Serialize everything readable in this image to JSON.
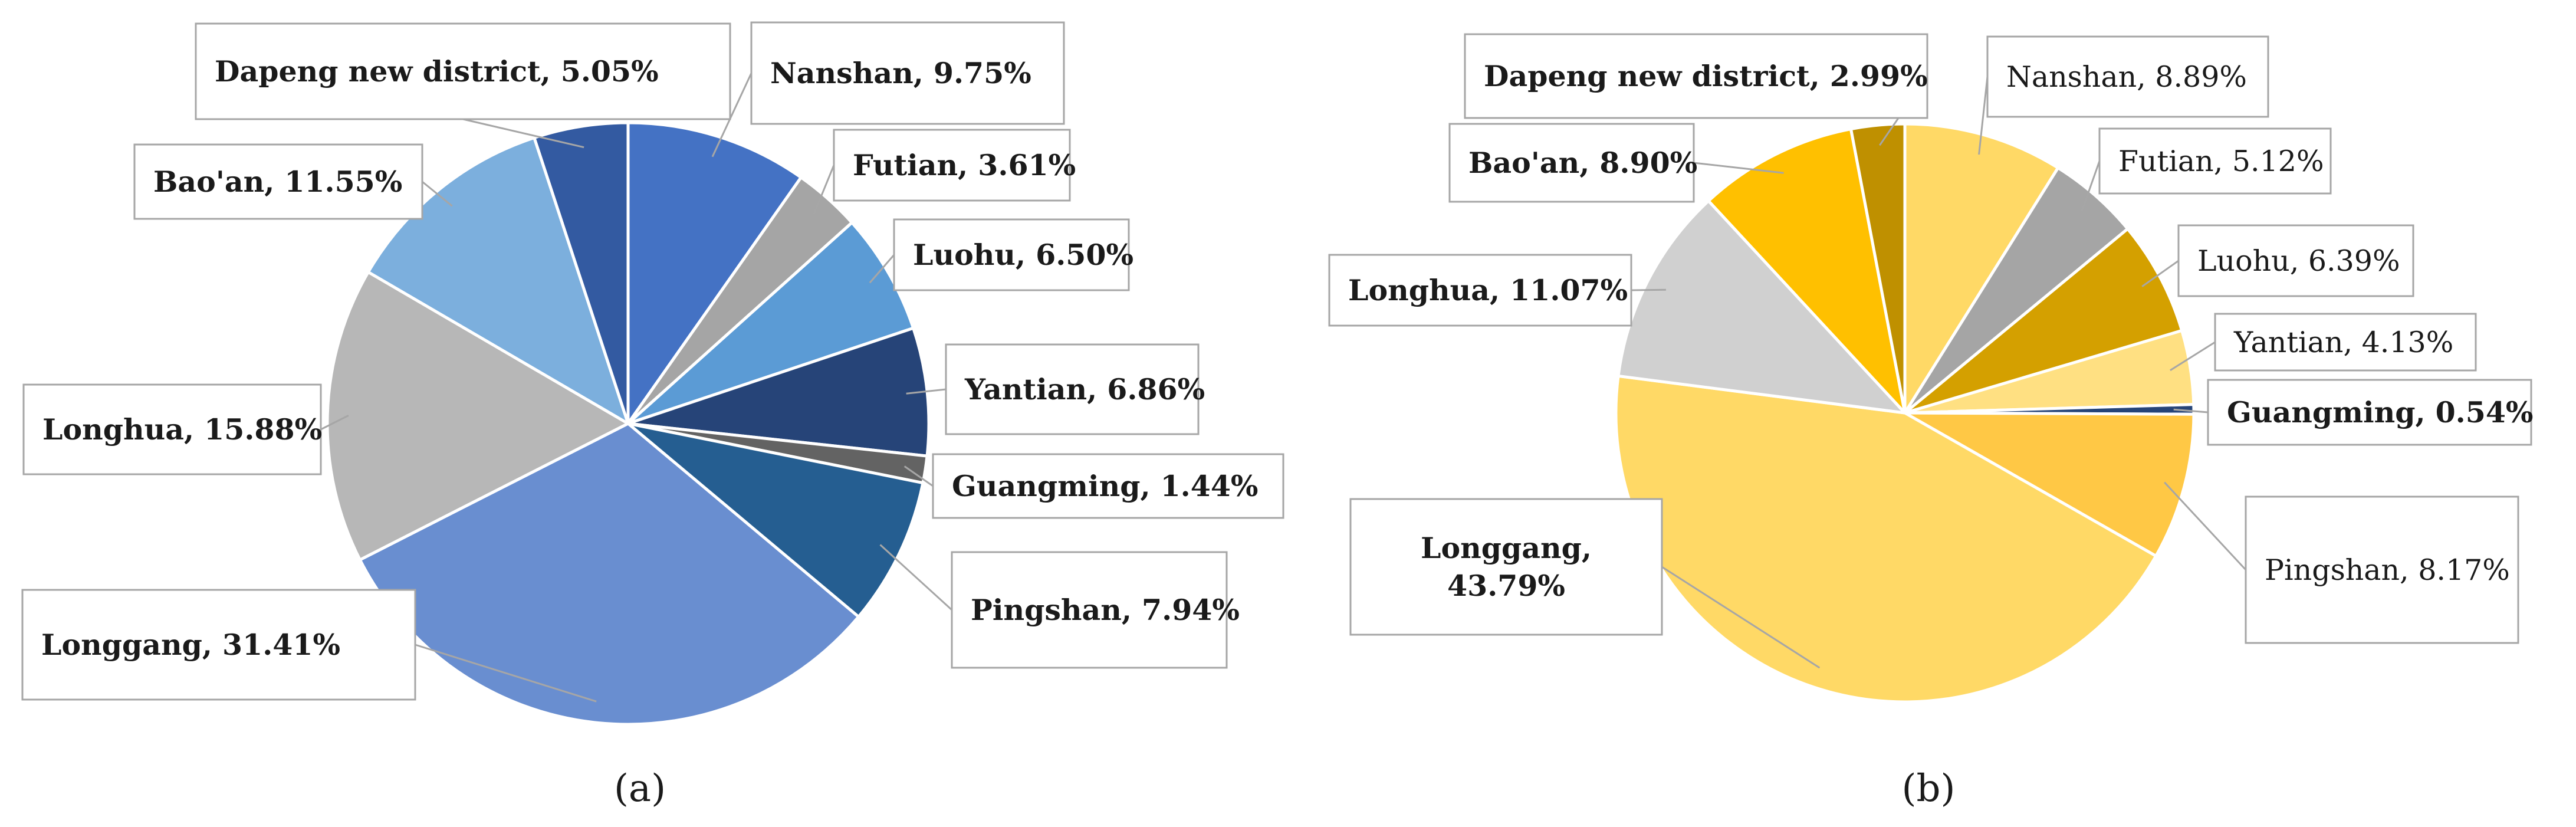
{
  "chart_data": [
    {
      "type": "pie",
      "panel_label": "(a)",
      "slices": [
        {
          "label": "Nanshan",
          "value": 9.75,
          "text": "Nanshan, 9.75%",
          "color": "#4472c4"
        },
        {
          "label": "Futian",
          "value": 3.61,
          "text": "Futian, 3.61%",
          "color": "#a5a5a5"
        },
        {
          "label": "Luohu",
          "value": 6.5,
          "text": "Luohu, 6.50%",
          "color": "#5b9bd5"
        },
        {
          "label": "Yantian",
          "value": 6.86,
          "text": "Yantian, 6.86%",
          "color": "#264478"
        },
        {
          "label": "Guangming",
          "value": 1.44,
          "text": "Guangming, 1.44%",
          "color": "#636363"
        },
        {
          "label": "Pingshan",
          "value": 7.94,
          "text": "Pingshan, 7.94%",
          "color": "#255e91"
        },
        {
          "label": "Longgang",
          "value": 31.41,
          "text": "Longgang, 31.41%",
          "color": "#698ed0"
        },
        {
          "label": "Longhua",
          "value": 15.88,
          "text": "Longhua, 15.88%",
          "color": "#b7b7b7"
        },
        {
          "label": "Bao'an",
          "value": 11.55,
          "text": "Bao'an, 11.55%",
          "color": "#7cafdd"
        },
        {
          "label": "Dapeng new district",
          "value": 5.05,
          "text": "Dapeng new district, 5.05%",
          "color": "#335aa1"
        }
      ]
    },
    {
      "type": "pie",
      "panel_label": "(b)",
      "slices": [
        {
          "label": "Nanshan",
          "value": 8.89,
          "text": "Nanshan, 8.89%",
          "color": "#ffd966"
        },
        {
          "label": "Futian",
          "value": 5.12,
          "text": "Futian, 5.12%",
          "color": "#a5a5a5"
        },
        {
          "label": "Luohu",
          "value": 6.39,
          "text": "Luohu, 6.39%",
          "color": "#d4a000"
        },
        {
          "label": "Yantian",
          "value": 4.13,
          "text": "Yantian, 4.13%",
          "color": "#ffe082"
        },
        {
          "label": "Guangming",
          "value": 0.54,
          "text": "Guangming, 0.54%",
          "color": "#264478"
        },
        {
          "label": "Pingshan",
          "value": 8.17,
          "text": "Pingshan, 8.17%",
          "color": "#ffc845"
        },
        {
          "label": "Longgang",
          "value": 43.79,
          "text": "Longgang,\n43.79%",
          "color": "#ffd966"
        },
        {
          "label": "Longhua",
          "value": 11.07,
          "text": "Longhua, 11.07%",
          "color": "#d0d0d0"
        },
        {
          "label": "Bao'an",
          "value": 8.9,
          "text": "Bao'an, 8.90%",
          "color": "#ffc000"
        },
        {
          "label": "Dapeng new district",
          "value": 2.99,
          "text": "Dapeng new district, 2.99%",
          "color": "#bf9000"
        }
      ]
    }
  ]
}
